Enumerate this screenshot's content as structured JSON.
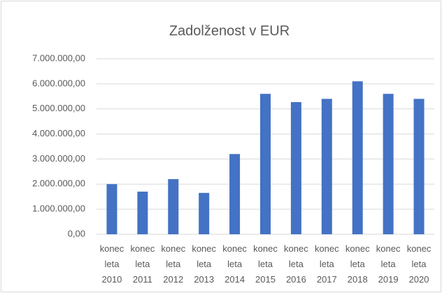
{
  "chart_data": {
    "type": "bar",
    "title": "Zadolženost v EUR",
    "categories": [
      "konec leta 2010",
      "konec leta 2011",
      "konec leta 2012",
      "konec leta 2013",
      "konec leta 2014",
      "konec leta 2015",
      "konec leta 2016",
      "konec leta 2017",
      "konec leta 2018",
      "konec leta 2019",
      "konec leta 2020"
    ],
    "values": [
      2000000,
      1700000,
      2200000,
      1650000,
      3200000,
      5600000,
      5270000,
      5400000,
      6100000,
      5600000,
      5400000
    ],
    "color": "#4472c4",
    "ylim": [
      0,
      7000000
    ],
    "yticks": [
      {
        "value": 0,
        "label": "0,00"
      },
      {
        "value": 1000000,
        "label": "1.000.000,00"
      },
      {
        "value": 2000000,
        "label": "2.000.000,00"
      },
      {
        "value": 3000000,
        "label": "3.000.000,00"
      },
      {
        "value": 4000000,
        "label": "4.000.000,00"
      },
      {
        "value": 5000000,
        "label": "5.000.000,00"
      },
      {
        "value": 6000000,
        "label": "6.000.000,00"
      },
      {
        "value": 7000000,
        "label": "7.000.000,00"
      }
    ],
    "grid": true
  }
}
